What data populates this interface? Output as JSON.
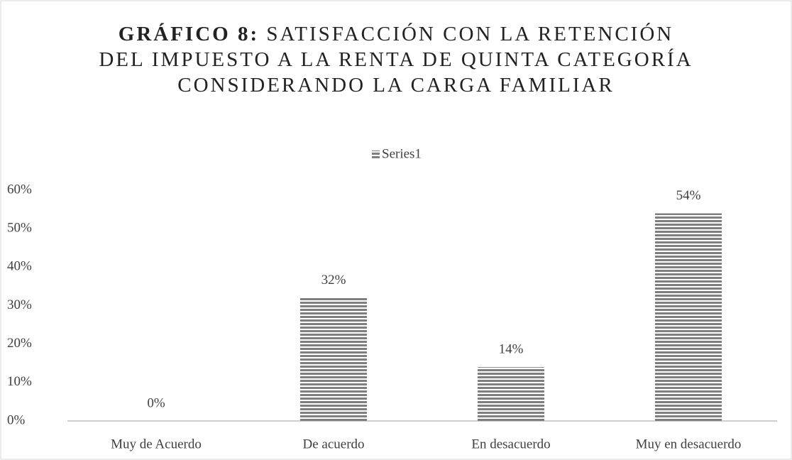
{
  "chart_data": {
    "type": "bar",
    "title_label": "GRÁFICO 8:",
    "title": "SATISFACCIÓN CON LA RETENCIÓN DEL IMPUESTO A LA RENTA DE QUINTA CATEGORÍA CONSIDERANDO LA CARGA FAMILIAR",
    "categories": [
      "Muy de Acuerdo",
      "De acuerdo",
      "En desacuerdo",
      "Muy en desacuerdo"
    ],
    "series": [
      {
        "name": "Series1",
        "color": "#7f7f7f",
        "values": [
          0,
          32,
          14,
          54
        ],
        "value_labels": [
          "0%",
          "32%",
          "14%",
          "54%"
        ]
      }
    ],
    "ylim": [
      0,
      60
    ],
    "yticks": [
      {
        "value": 0,
        "label": "0%"
      },
      {
        "value": 10,
        "label": "10%"
      },
      {
        "value": 20,
        "label": "20%"
      },
      {
        "value": 30,
        "label": "30%"
      },
      {
        "value": 40,
        "label": "40%"
      },
      {
        "value": 50,
        "label": "50%"
      },
      {
        "value": 60,
        "label": "60%"
      }
    ],
    "legend": "top",
    "grid": false
  }
}
